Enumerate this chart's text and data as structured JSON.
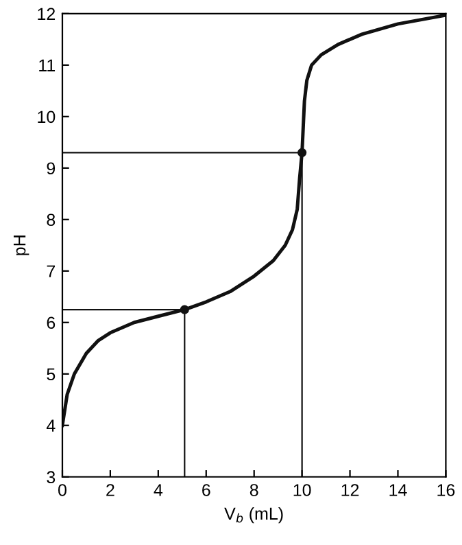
{
  "chart_data": {
    "type": "line",
    "xlabel": "V$_{b}$ (mL)",
    "ylabel": "pH",
    "xlim": [
      0,
      16
    ],
    "ylim": [
      3,
      12
    ],
    "xticks": [
      0,
      2,
      4,
      6,
      8,
      10,
      12,
      14,
      16
    ],
    "yticks": [
      3,
      4,
      5,
      6,
      7,
      8,
      9,
      10,
      11,
      12
    ],
    "grid": false,
    "legend": false,
    "series": [
      {
        "color": "#111111",
        "x": [
          0,
          0.2,
          0.5,
          1,
          1.5,
          2,
          3,
          4,
          5.1,
          6,
          7,
          8,
          8.8,
          9.3,
          9.6,
          9.8,
          9.9,
          10,
          10.05,
          10.1,
          10.2,
          10.4,
          10.8,
          11.5,
          12.5,
          14,
          16
        ],
        "values": [
          4.0,
          4.6,
          5.0,
          5.4,
          5.65,
          5.8,
          6.0,
          6.12,
          6.25,
          6.4,
          6.6,
          6.9,
          7.2,
          7.5,
          7.8,
          8.2,
          8.8,
          9.3,
          9.8,
          10.3,
          10.7,
          11.0,
          11.2,
          11.4,
          11.6,
          11.8,
          11.97
        ]
      },
      {
        "type": "line",
        "color": "#111111",
        "x": [
          0,
          5.1,
          5.1
        ],
        "values": [
          6.25,
          6.25,
          3
        ]
      },
      {
        "type": "line",
        "color": "#111111",
        "x": [
          0,
          10,
          10
        ],
        "values": [
          9.3,
          9.3,
          3
        ]
      },
      {
        "type": "scatter",
        "color": "#111111",
        "marker": "circle",
        "x": [
          5.1,
          10
        ],
        "values": [
          6.25,
          9.3
        ]
      }
    ]
  }
}
